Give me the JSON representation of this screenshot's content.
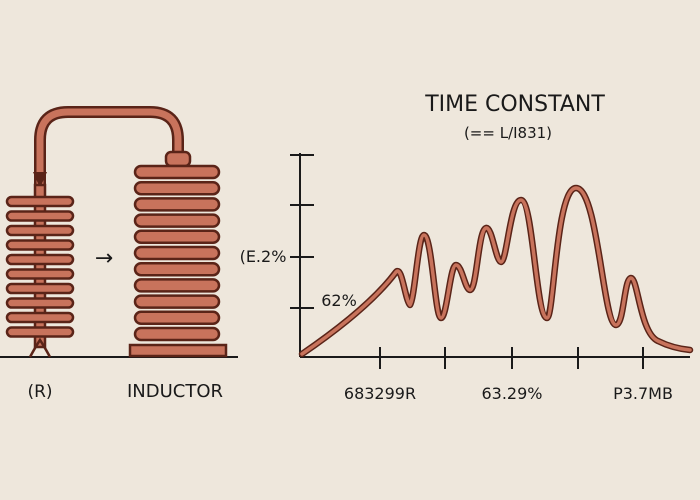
{
  "left_diagram": {
    "resistor_label": "(R)",
    "inductor_label": "INDUCTOR",
    "flow_arrow_glyph": "→"
  },
  "chart": {
    "title": "TIME CONSTANT",
    "subtitle": "(== L/I831)",
    "y_tick_labels": [
      "(E.2%",
      "62%"
    ],
    "x_tick_labels": [
      "683299R",
      "63.29%",
      "P3.7MB"
    ]
  },
  "colors": {
    "background": "#eee7dc",
    "copper_fill": "#c8735c",
    "copper_outline": "#5a2418",
    "ink": "#1a1a1a"
  }
}
